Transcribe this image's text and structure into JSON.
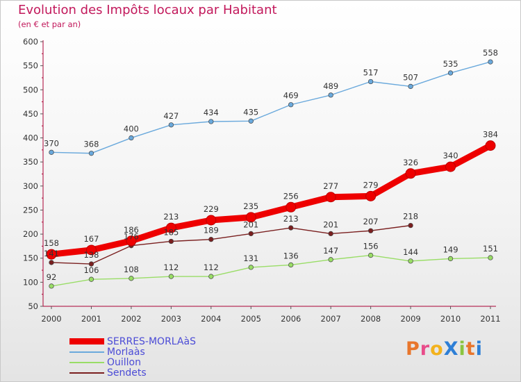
{
  "header": {
    "title": "Evolution des Impôts locaux par Habitant",
    "subtitle": "(en € et par an)"
  },
  "logo": {
    "text": "ProXiti"
  },
  "colors": {
    "title": "#c2185b",
    "legend_text": "#4b4bd6",
    "axis": "#aa0033",
    "grid_tick": "#555555"
  },
  "chart_data": {
    "type": "line",
    "title": "Evolution des Impôts locaux par Habitant",
    "subtitle": "(en € et par an)",
    "xlabel": "",
    "ylabel": "",
    "categories": [
      "2000",
      "2001",
      "2002",
      "2003",
      "2004",
      "2005",
      "2006",
      "2007",
      "2008",
      "2009",
      "2010",
      "2011"
    ],
    "ylim": [
      50,
      600
    ],
    "yticks": [
      50,
      100,
      150,
      200,
      250,
      300,
      350,
      400,
      450,
      500,
      550,
      600
    ],
    "grid": false,
    "legend_position": "bottom-left",
    "series": [
      {
        "name": "SERRES-MORLAàS",
        "color": "#ee0000",
        "values": [
          158,
          167,
          186,
          213,
          229,
          235,
          256,
          277,
          279,
          326,
          340,
          384
        ]
      },
      {
        "name": "Morlaàs",
        "color": "#6aa9dc",
        "values": [
          370,
          368,
          400,
          427,
          434,
          435,
          469,
          489,
          517,
          507,
          535,
          558
        ]
      },
      {
        "name": "Ouillon",
        "color": "#99dd66",
        "values": [
          92,
          106,
          108,
          112,
          112,
          131,
          136,
          147,
          156,
          144,
          149,
          151
        ]
      },
      {
        "name": "Sendets",
        "color": "#7a1f1f",
        "values": [
          141,
          138,
          176,
          185,
          189,
          201,
          213,
          201,
          207,
          218,
          null,
          null
        ]
      }
    ]
  }
}
